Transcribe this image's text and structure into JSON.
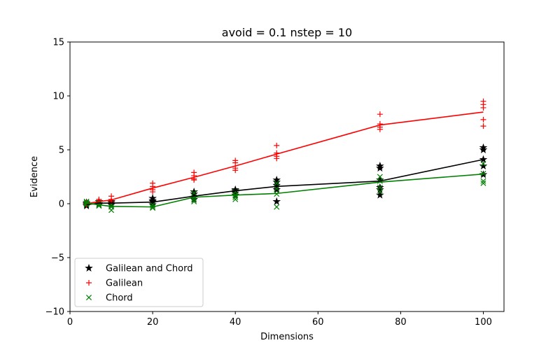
{
  "chart_data": {
    "type": "scatter",
    "title": "avoid = 0.1  nstep = 10",
    "xlabel": "Dimensions",
    "ylabel": "Evidence",
    "xlim": [
      0,
      105
    ],
    "ylim": [
      -10,
      15
    ],
    "xticks": [
      0,
      20,
      40,
      60,
      80,
      100
    ],
    "yticks": [
      -10,
      -5,
      0,
      5,
      10,
      15
    ],
    "xtick_labels": [
      "0",
      "20",
      "40",
      "60",
      "80",
      "100"
    ],
    "ytick_labels": [
      "−10",
      "−5",
      "0",
      "5",
      "10",
      "15"
    ],
    "grid": false,
    "legend_position": "lower-left",
    "series": [
      {
        "name": "Galilean and Chord",
        "color": "#000000",
        "marker": "star",
        "points": [
          [
            4,
            -0.2
          ],
          [
            4,
            0.1
          ],
          [
            4,
            -0.1
          ],
          [
            4,
            0.0
          ],
          [
            7,
            0.2
          ],
          [
            7,
            0.0
          ],
          [
            7,
            -0.1
          ],
          [
            10,
            0.1
          ],
          [
            10,
            -0.1
          ],
          [
            10,
            0.2
          ],
          [
            20,
            0.5
          ],
          [
            20,
            0.2
          ],
          [
            20,
            -0.1
          ],
          [
            20,
            0.3
          ],
          [
            30,
            1.1
          ],
          [
            30,
            0.6
          ],
          [
            30,
            0.9
          ],
          [
            30,
            0.4
          ],
          [
            40,
            1.3
          ],
          [
            40,
            1.0
          ],
          [
            40,
            1.2
          ],
          [
            40,
            0.8
          ],
          [
            50,
            2.2
          ],
          [
            50,
            2.0
          ],
          [
            50,
            1.7
          ],
          [
            50,
            0.2
          ],
          [
            50,
            1.3
          ],
          [
            75,
            3.5
          ],
          [
            75,
            3.3
          ],
          [
            75,
            1.5
          ],
          [
            75,
            1.3
          ],
          [
            75,
            0.8
          ],
          [
            75,
            2.2
          ],
          [
            100,
            5.2
          ],
          [
            100,
            5.0
          ],
          [
            100,
            4.1
          ],
          [
            100,
            3.5
          ],
          [
            100,
            2.7
          ]
        ],
        "line_x": [
          4,
          7,
          10,
          20,
          30,
          40,
          50,
          75,
          100
        ],
        "line_y": [
          -0.1,
          0.05,
          0.05,
          0.15,
          0.7,
          1.2,
          1.6,
          2.1,
          4.1
        ]
      },
      {
        "name": "Galilean",
        "color": "#ff0000",
        "marker": "plus",
        "points": [
          [
            4,
            0.1
          ],
          [
            4,
            -0.1
          ],
          [
            4,
            0.0
          ],
          [
            7,
            0.4
          ],
          [
            7,
            0.2
          ],
          [
            7,
            0.0
          ],
          [
            10,
            0.7
          ],
          [
            10,
            0.4
          ],
          [
            10,
            0.2
          ],
          [
            20,
            1.9
          ],
          [
            20,
            1.6
          ],
          [
            20,
            1.3
          ],
          [
            20,
            1.1
          ],
          [
            30,
            2.9
          ],
          [
            30,
            2.6
          ],
          [
            30,
            2.3
          ],
          [
            30,
            2.2
          ],
          [
            40,
            4.0
          ],
          [
            40,
            3.8
          ],
          [
            40,
            3.3
          ],
          [
            40,
            3.1
          ],
          [
            50,
            5.4
          ],
          [
            50,
            4.7
          ],
          [
            50,
            4.4
          ],
          [
            50,
            4.2
          ],
          [
            75,
            8.3
          ],
          [
            75,
            7.4
          ],
          [
            75,
            7.1
          ],
          [
            75,
            6.9
          ],
          [
            100,
            9.5
          ],
          [
            100,
            9.2
          ],
          [
            100,
            8.9
          ],
          [
            100,
            7.8
          ],
          [
            100,
            7.2
          ]
        ],
        "line_x": [
          4,
          7,
          10,
          20,
          30,
          40,
          50,
          75,
          100
        ],
        "line_y": [
          0.0,
          0.2,
          0.35,
          1.45,
          2.45,
          3.5,
          4.6,
          7.3,
          8.5
        ]
      },
      {
        "name": "Chord",
        "color": "#008000",
        "marker": "x",
        "points": [
          [
            4,
            0.2
          ],
          [
            4,
            0.0
          ],
          [
            4,
            -0.1
          ],
          [
            4,
            0.1
          ],
          [
            7,
            0.1
          ],
          [
            7,
            -0.1
          ],
          [
            7,
            -0.2
          ],
          [
            10,
            -0.1
          ],
          [
            10,
            -0.3
          ],
          [
            10,
            -0.6
          ],
          [
            20,
            -0.1
          ],
          [
            20,
            -0.3
          ],
          [
            20,
            -0.4
          ],
          [
            30,
            1.0
          ],
          [
            30,
            0.6
          ],
          [
            30,
            0.4
          ],
          [
            30,
            0.2
          ],
          [
            40,
            1.1
          ],
          [
            40,
            0.8
          ],
          [
            40,
            0.6
          ],
          [
            40,
            0.4
          ],
          [
            50,
            1.9
          ],
          [
            50,
            1.4
          ],
          [
            50,
            0.9
          ],
          [
            50,
            -0.3
          ],
          [
            75,
            2.5
          ],
          [
            75,
            2.1
          ],
          [
            75,
            1.5
          ],
          [
            75,
            1.1
          ],
          [
            100,
            3.7
          ],
          [
            100,
            2.8
          ],
          [
            100,
            2.1
          ],
          [
            100,
            1.9
          ]
        ],
        "line_x": [
          4,
          7,
          10,
          20,
          30,
          40,
          50,
          75,
          100
        ],
        "line_y": [
          0.05,
          -0.1,
          -0.25,
          -0.3,
          0.6,
          0.8,
          0.95,
          2.0,
          2.75
        ]
      }
    ]
  }
}
